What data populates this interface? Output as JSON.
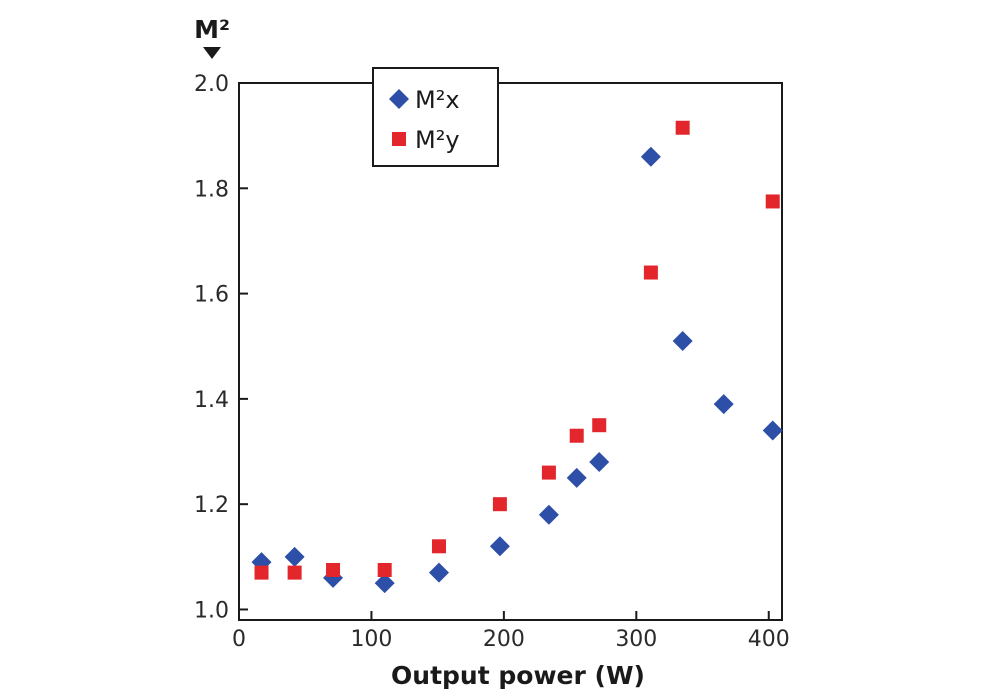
{
  "chart_data": {
    "type": "scatter",
    "ylabel": "M²",
    "xlabel": "Output power (W)",
    "xlim": [
      0,
      410
    ],
    "ylim": [
      0.98,
      2.0
    ],
    "xticks": [
      0,
      100,
      200,
      300,
      400
    ],
    "yticks": [
      1.0,
      1.2,
      1.4,
      1.6,
      1.8,
      2.0
    ],
    "xtick_labels": [
      "0",
      "100",
      "200",
      "300",
      "400"
    ],
    "ytick_labels": [
      "1.0",
      "1.2",
      "1.4",
      "1.6",
      "1.8",
      "2.0"
    ],
    "grid": false,
    "legend_position": "top-left",
    "series": [
      {
        "name": "M²x",
        "marker": "diamond",
        "color": "#2e4fa8",
        "points": [
          {
            "x": 17,
            "y": 1.09
          },
          {
            "x": 42,
            "y": 1.1
          },
          {
            "x": 71,
            "y": 1.06
          },
          {
            "x": 110,
            "y": 1.05
          },
          {
            "x": 151,
            "y": 1.07
          },
          {
            "x": 197,
            "y": 1.12
          },
          {
            "x": 234,
            "y": 1.18
          },
          {
            "x": 255,
            "y": 1.25
          },
          {
            "x": 272,
            "y": 1.28
          },
          {
            "x": 311,
            "y": 1.86
          },
          {
            "x": 335,
            "y": 1.51
          },
          {
            "x": 366,
            "y": 1.39
          },
          {
            "x": 403,
            "y": 1.34
          }
        ]
      },
      {
        "name": "M²y",
        "marker": "square",
        "color": "#e3262b",
        "points": [
          {
            "x": 17,
            "y": 1.07
          },
          {
            "x": 42,
            "y": 1.07
          },
          {
            "x": 71,
            "y": 1.075
          },
          {
            "x": 110,
            "y": 1.075
          },
          {
            "x": 151,
            "y": 1.12
          },
          {
            "x": 197,
            "y": 1.2
          },
          {
            "x": 234,
            "y": 1.26
          },
          {
            "x": 255,
            "y": 1.33
          },
          {
            "x": 272,
            "y": 1.35
          },
          {
            "x": 311,
            "y": 1.64
          },
          {
            "x": 335,
            "y": 1.915
          },
          {
            "x": 403,
            "y": 1.775
          }
        ]
      }
    ]
  }
}
